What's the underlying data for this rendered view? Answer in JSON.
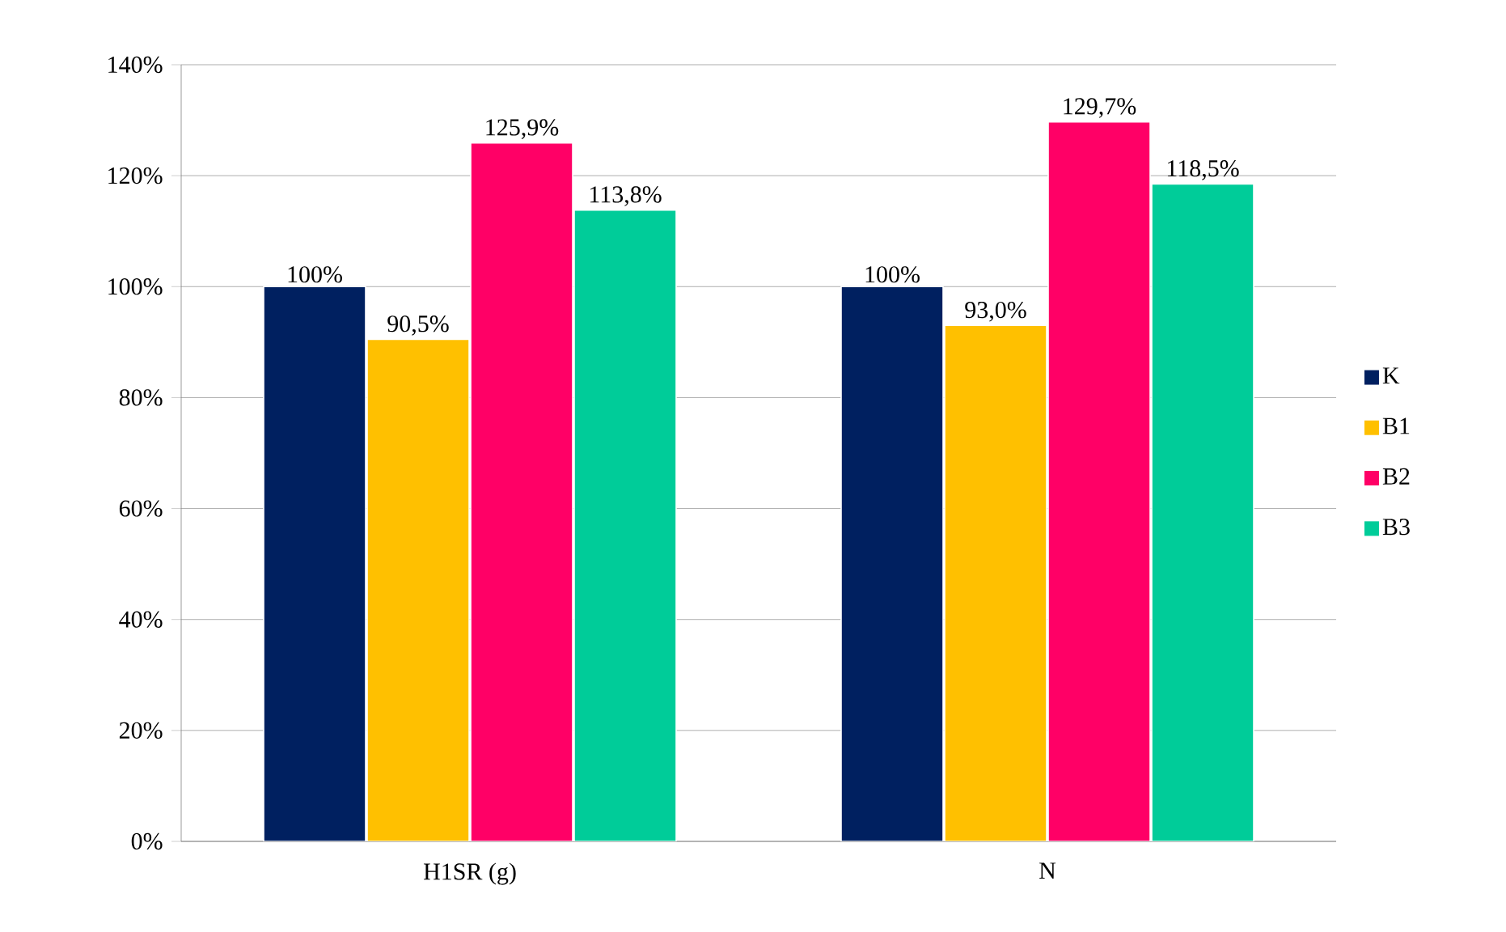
{
  "chart_data": {
    "type": "bar",
    "categories": [
      "H1SR (g)",
      "N"
    ],
    "series": [
      {
        "name": "K",
        "color": "#002060",
        "values": [
          100,
          100
        ],
        "value_labels": [
          "100%",
          "100%"
        ]
      },
      {
        "name": "B1",
        "color": "#ffc000",
        "values": [
          90.5,
          93.0
        ],
        "value_labels": [
          "90,5%",
          "93,0%"
        ]
      },
      {
        "name": "B2",
        "color": "#ff0066",
        "values": [
          125.9,
          129.7
        ],
        "value_labels": [
          "125,9%",
          "129,7%"
        ]
      },
      {
        "name": "B3",
        "color": "#00cc99",
        "values": [
          113.8,
          118.5
        ],
        "value_labels": [
          "113,8%",
          "118,5%"
        ]
      }
    ],
    "ylim": [
      0,
      140
    ],
    "yticks": [
      {
        "value": 0,
        "label": "0%"
      },
      {
        "value": 20,
        "label": "20%"
      },
      {
        "value": 40,
        "label": "40%"
      },
      {
        "value": 60,
        "label": "60%"
      },
      {
        "value": 80,
        "label": "80%"
      },
      {
        "value": 100,
        "label": "100%"
      },
      {
        "value": 120,
        "label": "120%"
      },
      {
        "value": 140,
        "label": "140%"
      }
    ],
    "grid": "y",
    "legend": "right"
  }
}
